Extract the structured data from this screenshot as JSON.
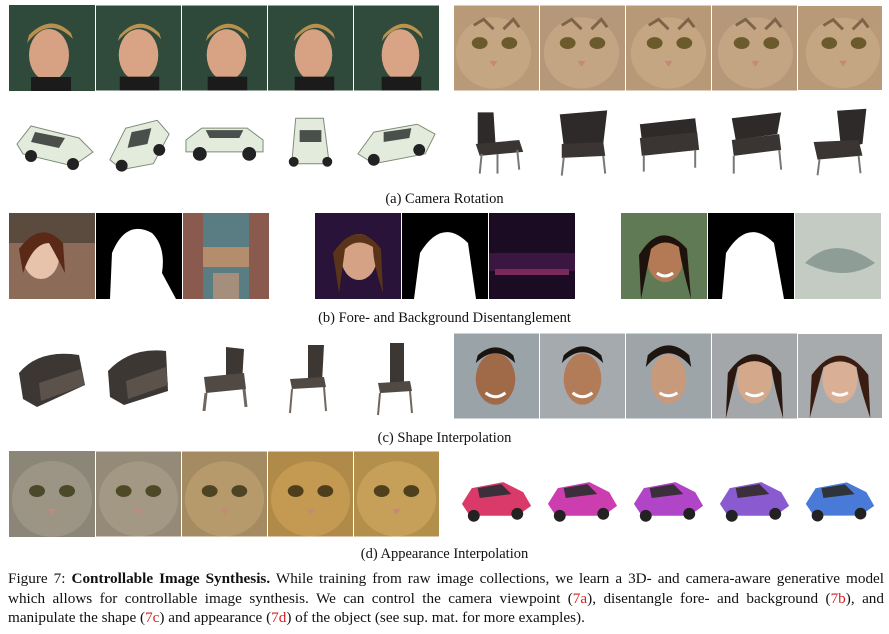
{
  "subcaptions": {
    "a": "(a) Camera Rotation",
    "b": "(b) Fore- and Background Disentanglement",
    "c": "(c) Shape Interpolation",
    "d": "(d) Appearance Interpolation"
  },
  "caption": {
    "figure_label": "Figure 7:",
    "title": "Controllable Image Synthesis.",
    "text_1": "While training from raw image collections, we learn a 3D- and camera-aware generative model which allows for controllable image synthesis. We can control the camera viewpoint (",
    "ref_a": "7a",
    "text_2": "), disentangle fore- and background (",
    "ref_b": "7b",
    "text_3": "), and manipulate the shape (",
    "ref_c": "7c",
    "text_4": ") and appearance (",
    "ref_d": "7d",
    "text_5": ") of the object (see sup. mat. for more examples)."
  },
  "colors": {
    "reference_link": "#d21f1f",
    "face_background": "#2f4a3a",
    "cat_fur": "#b89a78",
    "car_white": "#e6eedf",
    "chair_dark": "#3a3533",
    "mask_white": "#ffffff",
    "mask_black": "#000000"
  }
}
